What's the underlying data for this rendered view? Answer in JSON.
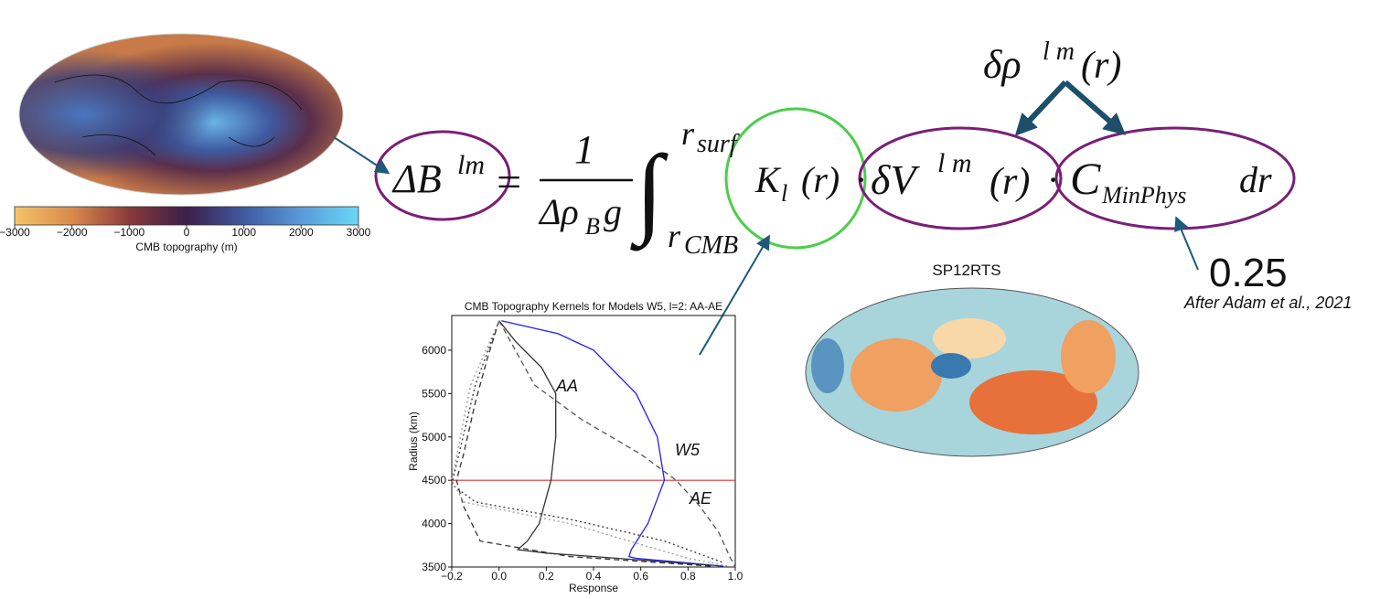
{
  "equation": {
    "lhs": "ΔB",
    "lhs_sup": "lm",
    "equals": "=",
    "numerator": "1",
    "denominator": "Δρ",
    "denominator_sub": "B",
    "denominator_g": "g",
    "integral": "∫",
    "upper": "r",
    "upper_sub": "surf",
    "lower": "r",
    "lower_sub": "CMB",
    "kernel": "K",
    "kernel_sub": "l",
    "kernel_arg": "(r)",
    "dot": "·",
    "dv": "δV",
    "dv_sup": "l m",
    "dv_arg": "(r)",
    "c": "C",
    "c_sub": "MinPhys",
    "dr": "dr",
    "drho": "δρ",
    "drho_sup": "l m",
    "drho_arg": "(r)"
  },
  "annotations": {
    "factor": "0.25",
    "citation": "After Adam et al., 2021",
    "map_title": "SP12RTS"
  },
  "chart_data": [
    {
      "type": "colorbar",
      "xlabel": "CMB topography (m)",
      "xlim": [
        -3000,
        3000
      ],
      "colors": [
        "#f5c46a",
        "#d98a4c",
        "#8a3a3a",
        "#3b1f4a",
        "#3f5aa0",
        "#5a9ad8",
        "#6ad8f8"
      ],
      "xticks": [
        {
          "value": -3000,
          "label": "−3000"
        },
        {
          "value": -2000,
          "label": "−2000"
        },
        {
          "value": -1000,
          "label": "−1000"
        },
        0,
        1000,
        2000,
        3000
      ]
    },
    {
      "type": "line",
      "title": "CMB Topography Kernels for Models W5, l=2: AA-AE",
      "xlabel": "Response",
      "ylabel": "Radius (km)",
      "xlim": [
        -0.2,
        1.0
      ],
      "ylim": [
        3500,
        6400
      ],
      "xticks": [
        {
          "value": -0.2,
          "label": "−0.2"
        },
        {
          "value": 0,
          "label": "0.0"
        },
        {
          "value": 0.2,
          "label": "0.2"
        },
        {
          "value": 0.4,
          "label": "0.4"
        },
        {
          "value": 0.6,
          "label": "0.6"
        },
        {
          "value": 0.8,
          "label": "0.8"
        },
        {
          "value": 1,
          "label": "1.0"
        }
      ],
      "yticks": [
        3500,
        4000,
        4500,
        5000,
        5500,
        6000
      ],
      "hline": 4500,
      "hline_color": "#e03030",
      "series": [
        {
          "name": "W5",
          "color": "#1f1fff",
          "style": "solid",
          "x": [
            0.01,
            0.25,
            0.4,
            0.58,
            0.67,
            0.7,
            0.63,
            0.56,
            0.55,
            0.58,
            0.95
          ],
          "y": [
            6340,
            6190,
            6000,
            5500,
            5000,
            4500,
            4000,
            3700,
            3620,
            3600,
            3510
          ]
        },
        {
          "name": "AA",
          "color": "#333333",
          "style": "solid",
          "x": [
            0.0,
            0.07,
            0.18,
            0.24,
            0.24,
            0.22,
            0.17,
            0.12,
            0.08,
            0.2,
            0.5,
            0.9
          ],
          "y": [
            6340,
            6100,
            5800,
            5500,
            5000,
            4500,
            4000,
            3800,
            3700,
            3660,
            3600,
            3520
          ]
        },
        {
          "name": "AE",
          "color": "#555555",
          "style": "dashed",
          "x": [
            0.0,
            0.15,
            0.35,
            0.6,
            0.75,
            0.85,
            0.93,
            0.98,
            1.0
          ],
          "y": [
            6340,
            5600,
            5200,
            4800,
            4500,
            4200,
            3900,
            3600,
            3500
          ]
        },
        {
          "color": "#333333",
          "style": "dashed",
          "x": [
            0.0,
            -0.05,
            -0.1,
            -0.15,
            -0.18,
            -0.15,
            -0.08,
            0.3,
            0.9
          ],
          "y": [
            6340,
            5900,
            5400,
            4800,
            4500,
            4200,
            3800,
            3620,
            3510
          ]
        },
        {
          "color": "#333333",
          "style": "dotted",
          "x": [
            0.0,
            -0.1,
            -0.17,
            -0.2,
            -0.1,
            0.3,
            0.7,
            0.95
          ],
          "y": [
            6340,
            5600,
            4800,
            4450,
            4250,
            4050,
            3800,
            3550
          ]
        },
        {
          "color": "#999999",
          "style": "dotted",
          "x": [
            0.0,
            -0.12,
            -0.2,
            -0.15,
            0.3,
            0.8,
            0.97
          ],
          "y": [
            6340,
            5600,
            4500,
            4250,
            4000,
            3600,
            3510
          ]
        }
      ]
    }
  ]
}
